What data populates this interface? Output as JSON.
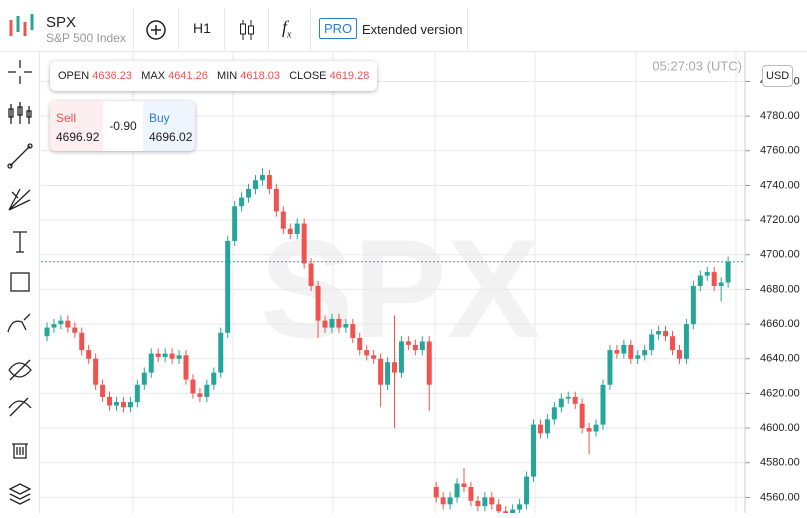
{
  "header": {
    "symbol": "SPX",
    "name": "S&P 500 Index"
  },
  "toolbar": {
    "interval": "H1",
    "pro": "PRO",
    "extended": "Extended version"
  },
  "ohlc": {
    "open_label": "OPEN",
    "open": "4636.23",
    "max_label": "MAX",
    "max": "4641.26",
    "min_label": "MIN",
    "min": "4618.03",
    "close_label": "CLOSE",
    "close": "4619.28"
  },
  "quote": {
    "sell_label": "Sell",
    "sell": "4696.92",
    "spread": "-0.90",
    "buy_label": "Buy",
    "buy": "4696.02"
  },
  "time": "05:27:03 (UTC)",
  "currency": "USD",
  "watermark": "SPX",
  "chart_data": {
    "type": "candlestick",
    "up_color": "#26a69a",
    "down_color": "#ef5350",
    "grid": true,
    "price_line": 4696,
    "ylim": [
      4551,
      4817
    ],
    "yticks": [
      {
        "value": 4560,
        "label": "4560.00"
      },
      {
        "value": 4580,
        "label": "4580.00"
      },
      {
        "value": 4600,
        "label": "4600.00"
      },
      {
        "value": 4620,
        "label": "4620.00"
      },
      {
        "value": 4640,
        "label": "4640.00"
      },
      {
        "value": 4660,
        "label": "4660.00"
      },
      {
        "value": 4680,
        "label": "4680.00"
      },
      {
        "value": 4700,
        "label": "4700.00"
      },
      {
        "value": 4720,
        "label": "4720.00"
      },
      {
        "value": 4740,
        "label": "4740.00"
      },
      {
        "value": 4760,
        "label": "4760.00"
      },
      {
        "value": 4780,
        "label": "4780.00"
      },
      {
        "value": 4800,
        "label": "4800.00"
      }
    ],
    "open": [
      4653,
      4658,
      4660,
      4662,
      4658,
      4655,
      4645,
      4640,
      4625,
      4618,
      4613,
      4615,
      4612,
      4615,
      4625,
      4632,
      4643,
      4641,
      4643,
      4640,
      4642,
      4628,
      4620,
      4618,
      4625,
      4632,
      4655,
      4708,
      4728,
      4733,
      4738,
      4743,
      4746,
      4738,
      4725,
      4715,
      4712,
      4718,
      4695,
      4682,
      4662,
      4658,
      4663,
      4658,
      4660,
      4652,
      4645,
      4642,
      4640,
      4625,
      4638,
      4632,
      4650,
      4648,
      4645,
      4650,
      4566,
      4560,
      4556,
      4560,
      4568,
      4566,
      4558,
      4555,
      4560,
      4556,
      4552,
      4550,
      4553,
      4556,
      4572,
      4602,
      4597,
      4605,
      4612,
      4617,
      4618,
      4614,
      4600,
      4598,
      4602,
      4625,
      4645,
      4643,
      4648,
      4640,
      4642,
      4645,
      4654,
      4656,
      4653,
      4645,
      4640,
      4660,
      4682,
      4688,
      4690,
      4682,
      4684
    ],
    "high": [
      4661,
      4663,
      4665,
      4665,
      4661,
      4658,
      4648,
      4643,
      4628,
      4621,
      4618,
      4618,
      4618,
      4628,
      4635,
      4646,
      4646,
      4646,
      4646,
      4645,
      4645,
      4631,
      4623,
      4628,
      4635,
      4658,
      4711,
      4731,
      4736,
      4741,
      4746,
      4750,
      4749,
      4741,
      4728,
      4718,
      4721,
      4721,
      4698,
      4685,
      4665,
      4666,
      4666,
      4663,
      4663,
      4655,
      4648,
      4645,
      4643,
      4641,
      4665,
      4653,
      4653,
      4651,
      4653,
      4653,
      4569,
      4563,
      4563,
      4571,
      4577,
      4569,
      4561,
      4563,
      4563,
      4559,
      4555,
      4556,
      4559,
      4575,
      4605,
      4605,
      4608,
      4615,
      4620,
      4621,
      4621,
      4617,
      4603,
      4605,
      4628,
      4648,
      4648,
      4651,
      4651,
      4645,
      4648,
      4657,
      4659,
      4659,
      4656,
      4648,
      4663,
      4685,
      4691,
      4693,
      4693,
      4687,
      4699
    ],
    "low": [
      4650,
      4655,
      4657,
      4655,
      4652,
      4642,
      4637,
      4622,
      4615,
      4610,
      4610,
      4609,
      4609,
      4612,
      4622,
      4629,
      4638,
      4638,
      4637,
      4637,
      4625,
      4617,
      4615,
      4615,
      4622,
      4629,
      4652,
      4705,
      4725,
      4730,
      4735,
      4740,
      4735,
      4722,
      4712,
      4709,
      4709,
      4692,
      4679,
      4652,
      4655,
      4655,
      4655,
      4655,
      4649,
      4642,
      4639,
      4637,
      4612,
      4622,
      4600,
      4629,
      4645,
      4642,
      4642,
      4610,
      4557,
      4553,
      4553,
      4557,
      4563,
      4555,
      4552,
      4552,
      4553,
      4549,
      4547,
      4547,
      4550,
      4553,
      4569,
      4594,
      4594,
      4602,
      4609,
      4614,
      4611,
      4597,
      4585,
      4595,
      4599,
      4622,
      4640,
      4640,
      4637,
      4637,
      4639,
      4642,
      4651,
      4650,
      4642,
      4637,
      4637,
      4657,
      4679,
      4685,
      4679,
      4673,
      4681
    ],
    "close": [
      4658,
      4660,
      4662,
      4658,
      4655,
      4645,
      4640,
      4625,
      4618,
      4613,
      4615,
      4612,
      4615,
      4625,
      4632,
      4643,
      4641,
      4643,
      4640,
      4642,
      4628,
      4620,
      4618,
      4625,
      4632,
      4655,
      4708,
      4728,
      4733,
      4738,
      4743,
      4746,
      4738,
      4725,
      4715,
      4712,
      4718,
      4695,
      4682,
      4662,
      4658,
      4663,
      4658,
      4660,
      4652,
      4645,
      4642,
      4640,
      4625,
      4638,
      4632,
      4650,
      4648,
      4645,
      4650,
      4625,
      4560,
      4556,
      4560,
      4568,
      4566,
      4558,
      4555,
      4560,
      4556,
      4552,
      4550,
      4553,
      4556,
      4572,
      4602,
      4597,
      4605,
      4612,
      4617,
      4618,
      4614,
      4600,
      4598,
      4602,
      4625,
      4645,
      4643,
      4648,
      4640,
      4642,
      4645,
      4654,
      4656,
      4653,
      4645,
      4640,
      4660,
      4682,
      4688,
      4690,
      4682,
      4684,
      4696
    ]
  }
}
